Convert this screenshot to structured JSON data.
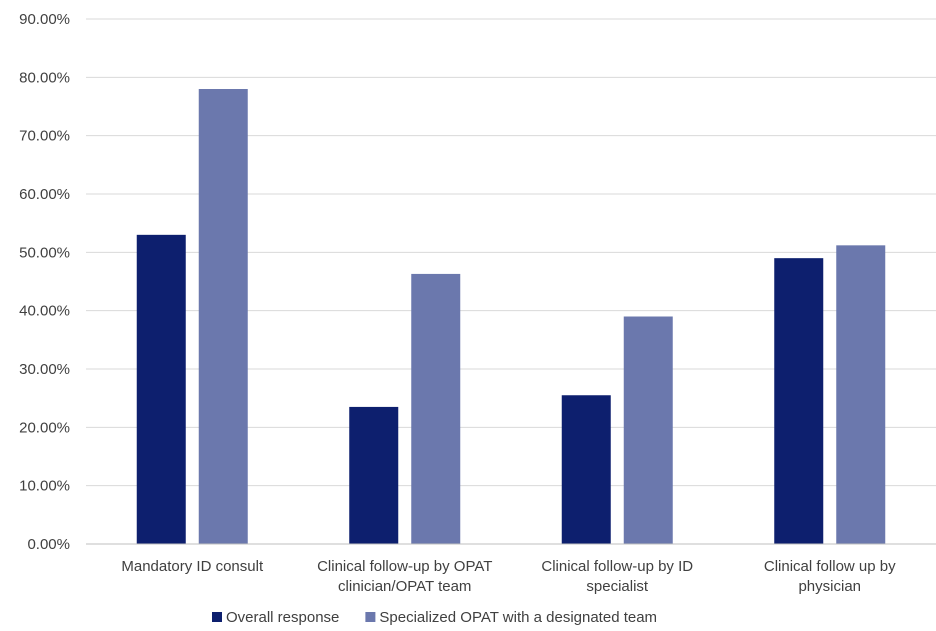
{
  "chart_data": {
    "type": "bar",
    "categories": [
      [
        "Mandatory ID consult"
      ],
      [
        "Clinical follow-up by OPAT",
        "clinician/OPAT team"
      ],
      [
        "Clinical follow-up by ID",
        "specialist"
      ],
      [
        "Clinical follow up by",
        "physician"
      ]
    ],
    "series": [
      {
        "name": "Overall response",
        "color": "#0d1f6e",
        "values": [
          0.53,
          0.235,
          0.255,
          0.49
        ]
      },
      {
        "name": "Specialized OPAT with a designated team",
        "color": "#6b78ad",
        "values": [
          0.78,
          0.463,
          0.39,
          0.512
        ]
      }
    ],
    "ylim": [
      0,
      0.9
    ],
    "yticks": [
      "0.00%",
      "10.00%",
      "20.00%",
      "30.00%",
      "40.00%",
      "50.00%",
      "60.00%",
      "70.00%",
      "80.00%",
      "90.00%"
    ],
    "grid": true,
    "legend": "bottom"
  }
}
